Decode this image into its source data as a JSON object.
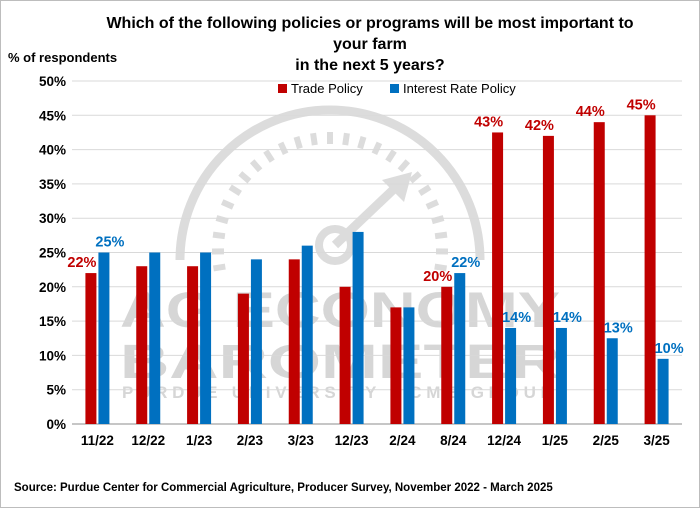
{
  "chart_data": {
    "type": "bar",
    "title": "Which of the following policies or programs will be most important to your farm in the next 5 years?",
    "title_lines": [
      "Which of the following policies or programs will be most important to your farm",
      "in the next 5 years?"
    ],
    "ylabel": "% of respondents",
    "xlabel": "",
    "ylim": [
      0,
      50
    ],
    "ytick_labels": [
      "0%",
      "5%",
      "10%",
      "15%",
      "20%",
      "25%",
      "30%",
      "35%",
      "40%",
      "45%",
      "50%"
    ],
    "grid": "horizontal",
    "legend": "top-center",
    "categories": [
      "11/22",
      "12/22",
      "1/23",
      "2/23",
      "3/23",
      "12/23",
      "2/24",
      "8/24",
      "12/24",
      "1/25",
      "2/25",
      "3/25"
    ],
    "series": [
      {
        "name": "Trade Policy",
        "color": "#c00000",
        "values": [
          22,
          23,
          23,
          19,
          24,
          20,
          17,
          20,
          42.5,
          42,
          44,
          45
        ],
        "labels": [
          "22%",
          "",
          "",
          "",
          "",
          "",
          "",
          "20%",
          "43%",
          "42%",
          "44%",
          "45%"
        ]
      },
      {
        "name": "Interest Rate Policy",
        "color": "#0070c0",
        "values": [
          25,
          25,
          25,
          24,
          26,
          28,
          17,
          22,
          14,
          14,
          12.5,
          9.5
        ],
        "labels": [
          "25%",
          "",
          "",
          "",
          "",
          "",
          "",
          "22%",
          "14%",
          "14%",
          "13%",
          "10%"
        ]
      }
    ],
    "watermark": {
      "line1": "AG ECONOMY",
      "line2": "BAROMETER",
      "line3": "PURDUE UNIVERSITY / CME GROUP"
    }
  },
  "source": "Source:  Purdue Center for Commercial Agriculture, Producer Survey, November 2022 - March 2025"
}
